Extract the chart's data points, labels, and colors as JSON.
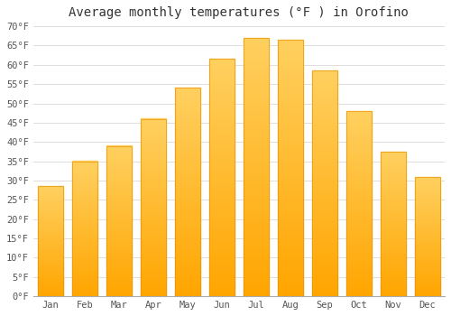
{
  "title": "Average monthly temperatures (°F ) in Orofino",
  "months": [
    "Jan",
    "Feb",
    "Mar",
    "Apr",
    "May",
    "Jun",
    "Jul",
    "Aug",
    "Sep",
    "Oct",
    "Nov",
    "Dec"
  ],
  "values": [
    28.5,
    35.0,
    39.0,
    46.0,
    54.0,
    61.5,
    67.0,
    66.5,
    58.5,
    48.0,
    37.5,
    31.0
  ],
  "bar_color_top": "#FFD060",
  "bar_color_bottom": "#FFA500",
  "bar_edge_color": "#E8940A",
  "background_color": "#FFFFFF",
  "grid_color": "#DDDDDD",
  "text_color": "#555555",
  "ylim": [
    0,
    70
  ],
  "yticks": [
    0,
    5,
    10,
    15,
    20,
    25,
    30,
    35,
    40,
    45,
    50,
    55,
    60,
    65,
    70
  ],
  "title_fontsize": 10,
  "tick_fontsize": 7.5,
  "font_family": "monospace",
  "bar_width": 0.75
}
